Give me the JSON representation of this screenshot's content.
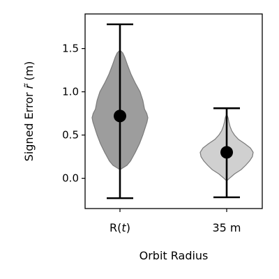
{
  "chart_data": {
    "type": "violin",
    "xlabel": "Orbit Radius",
    "ylabel_prefix": "Signed Error ",
    "ylabel_symbol": "r̃",
    "ylabel_suffix": " (m)",
    "ylim": [
      -0.35,
      1.9
    ],
    "yticks": [
      0.0,
      0.5,
      1.0,
      1.5
    ],
    "ytick_labels": [
      "0.0",
      "0.5",
      "1.0",
      "1.5"
    ],
    "grid": false,
    "categories": [
      {
        "label_prefix": "R(",
        "label_var": "t",
        "label_suffix": ")",
        "mean": 0.72,
        "min": -0.23,
        "max": 1.78,
        "color": "#8c8c8c",
        "profile": [
          [
            0.1,
            0.0
          ],
          [
            0.15,
            0.25
          ],
          [
            0.2,
            0.38
          ],
          [
            0.3,
            0.55
          ],
          [
            0.4,
            0.7
          ],
          [
            0.5,
            0.82
          ],
          [
            0.6,
            0.92
          ],
          [
            0.65,
            0.97
          ],
          [
            0.7,
            1.0
          ],
          [
            0.75,
            0.96
          ],
          [
            0.8,
            0.88
          ],
          [
            0.9,
            0.82
          ],
          [
            1.0,
            0.72
          ],
          [
            1.1,
            0.55
          ],
          [
            1.2,
            0.4
          ],
          [
            1.3,
            0.28
          ],
          [
            1.4,
            0.17
          ],
          [
            1.45,
            0.1
          ],
          [
            1.48,
            0.0
          ]
        ]
      },
      {
        "label_prefix": "35 m",
        "label_var": "",
        "label_suffix": "",
        "mean": 0.3,
        "min": -0.22,
        "max": 0.81,
        "color": "#c8c8c8",
        "profile": [
          [
            -0.03,
            0.0
          ],
          [
            0.0,
            0.1
          ],
          [
            0.05,
            0.28
          ],
          [
            0.1,
            0.52
          ],
          [
            0.15,
            0.68
          ],
          [
            0.2,
            0.82
          ],
          [
            0.25,
            0.92
          ],
          [
            0.3,
            0.95
          ],
          [
            0.35,
            0.85
          ],
          [
            0.4,
            0.65
          ],
          [
            0.45,
            0.42
          ],
          [
            0.5,
            0.28
          ],
          [
            0.55,
            0.18
          ],
          [
            0.6,
            0.12
          ],
          [
            0.65,
            0.08
          ],
          [
            0.7,
            0.05
          ],
          [
            0.74,
            0.0
          ]
        ]
      }
    ]
  }
}
